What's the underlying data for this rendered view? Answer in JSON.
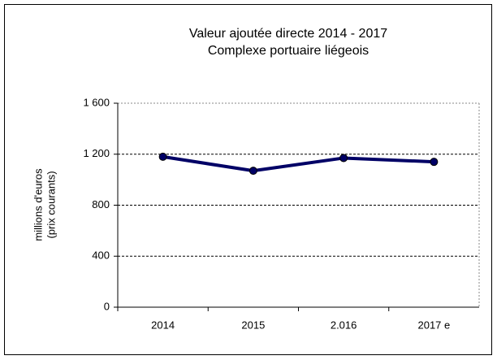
{
  "chart_data": {
    "type": "line",
    "title": [
      "Valeur ajoutée directe 2014 - 2017",
      "Complexe portuaire liégeois"
    ],
    "y_label": [
      "millions d'euros",
      "(prix courants)"
    ],
    "categories": [
      "2014",
      "2015",
      "2.016",
      "2017 e"
    ],
    "series": [
      {
        "name": "Valeur ajoutée directe",
        "color": "#000066",
        "values": [
          1180,
          1070,
          1170,
          1140
        ]
      }
    ],
    "ylim": [
      0,
      1600
    ],
    "yticks": [
      0,
      400,
      800,
      {
        "value": 1200,
        "label": "1 200"
      },
      {
        "value": 1600,
        "label": "1 600"
      }
    ],
    "grid": true
  }
}
